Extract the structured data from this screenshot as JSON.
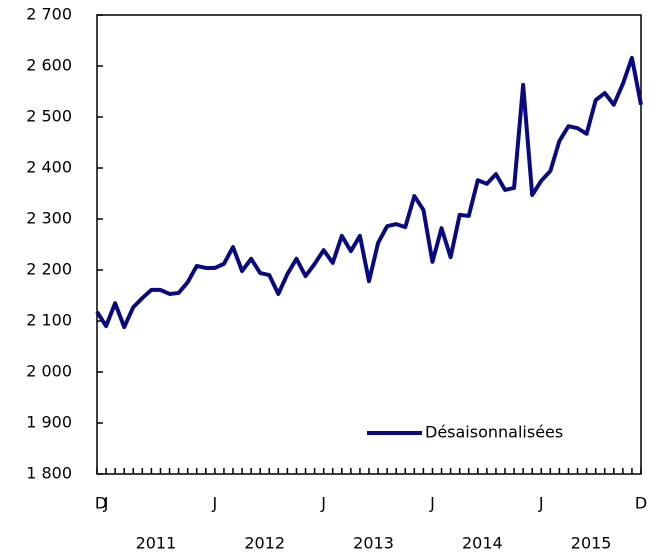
{
  "chart_data": {
    "type": "line",
    "categories": [
      "D",
      "J",
      null,
      null,
      null,
      null,
      null,
      null,
      null,
      null,
      null,
      null,
      null,
      "J",
      null,
      null,
      null,
      null,
      null,
      null,
      null,
      null,
      null,
      null,
      null,
      "J",
      null,
      null,
      null,
      null,
      null,
      null,
      null,
      null,
      null,
      null,
      null,
      "J",
      null,
      null,
      null,
      null,
      null,
      null,
      null,
      null,
      null,
      null,
      null,
      "J",
      null,
      null,
      null,
      null,
      null,
      null,
      null,
      null,
      null,
      null,
      "D"
    ],
    "years": [
      "2011",
      "2012",
      "2013",
      "2014",
      "2015"
    ],
    "series": [
      {
        "name": "Désaisonnalisées",
        "color": "#0a0a80",
        "values": [
          2118,
          2090,
          2135,
          2088,
          2127,
          2145,
          2161,
          2161,
          2153,
          2155,
          2176,
          2208,
          2204,
          2204,
          2212,
          2245,
          2198,
          2222,
          2194,
          2190,
          2153,
          2192,
          2222,
          2188,
          2212,
          2239,
          2214,
          2267,
          2237,
          2267,
          2178,
          2253,
          2286,
          2290,
          2284,
          2345,
          2318,
          2216,
          2282,
          2225,
          2308,
          2306,
          2376,
          2369,
          2388,
          2357,
          2361,
          2563,
          2347,
          2375,
          2394,
          2453,
          2482,
          2478,
          2467,
          2533,
          2547,
          2524,
          2565,
          2616,
          2524
        ]
      }
    ],
    "ylim": [
      1800,
      2700
    ],
    "yticks": [
      {
        "value": 1800,
        "label": "1 800"
      },
      {
        "value": 1900,
        "label": "1 900"
      },
      {
        "value": 2000,
        "label": "2 000"
      },
      {
        "value": 2100,
        "label": "2 100"
      },
      {
        "value": 2200,
        "label": "2 200"
      },
      {
        "value": 2300,
        "label": "2 300"
      },
      {
        "value": 2400,
        "label": "2 400"
      },
      {
        "value": 2500,
        "label": "2 500"
      },
      {
        "value": 2600,
        "label": "2 600"
      },
      {
        "value": 2700,
        "label": "2 700"
      }
    ],
    "grid": false,
    "legend": "lower right"
  }
}
